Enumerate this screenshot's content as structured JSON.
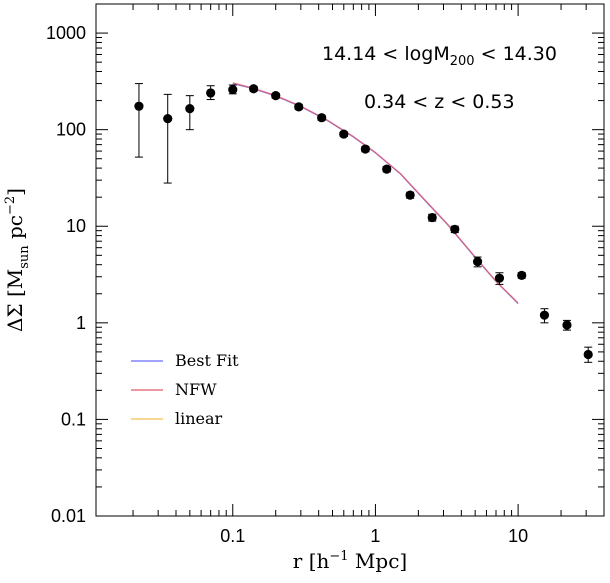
{
  "chart_data": {
    "type": "scatter",
    "xscale": "log",
    "yscale": "log",
    "xlim": [
      0.011,
      40
    ],
    "ylim": [
      0.01,
      2000
    ],
    "x_ticks": [
      {
        "value": 0.1,
        "label": "0.1"
      },
      {
        "value": 1,
        "label": "1"
      },
      {
        "value": 10,
        "label": "10"
      }
    ],
    "y_ticks": [
      {
        "value": 0.01,
        "label": "0.01"
      },
      {
        "value": 0.1,
        "label": "0.1"
      },
      {
        "value": 1,
        "label": "1"
      },
      {
        "value": 10,
        "label": "10"
      },
      {
        "value": 100,
        "label": "100"
      },
      {
        "value": 1000,
        "label": "1000"
      }
    ],
    "xlabel": {
      "prefix": "r  [h",
      "sup": "−1",
      "suffix": " Mpc]"
    },
    "ylabel": {
      "prefix": "ΔΣ  [M",
      "sub": "sun",
      "mid": "  pc",
      "sup": "−2",
      "suffix": "]"
    },
    "annotations": {
      "mass_range": {
        "left": "14.14  <  logM",
        "sub": "200",
        "right": "  <  14.30"
      },
      "z_range": "0.34  <  z  <  0.53"
    },
    "legend": [
      {
        "label": "Best Fit",
        "color": "#6b6bff"
      },
      {
        "label": "NFW",
        "color": "#e05a6a"
      },
      {
        "label": "linear",
        "color": "#f2c14e"
      }
    ],
    "legend_position": "lower-left",
    "data_points": [
      {
        "x": 0.022,
        "y": 175,
        "ylo": 52,
        "yhi": 300
      },
      {
        "x": 0.035,
        "y": 130,
        "ylo": 28,
        "yhi": 232
      },
      {
        "x": 0.05,
        "y": 165,
        "ylo": 100,
        "yhi": 225
      },
      {
        "x": 0.07,
        "y": 240,
        "ylo": 205,
        "yhi": 285
      },
      {
        "x": 0.1,
        "y": 260,
        "ylo": 235,
        "yhi": 290
      },
      {
        "x": 0.14,
        "y": 265,
        "ylo": 250,
        "yhi": 280
      },
      {
        "x": 0.2,
        "y": 225,
        "ylo": 212,
        "yhi": 238
      },
      {
        "x": 0.29,
        "y": 172,
        "ylo": 162,
        "yhi": 182
      },
      {
        "x": 0.42,
        "y": 133,
        "ylo": 125,
        "yhi": 141
      },
      {
        "x": 0.6,
        "y": 90,
        "ylo": 85,
        "yhi": 95
      },
      {
        "x": 0.85,
        "y": 63,
        "ylo": 59,
        "yhi": 67
      },
      {
        "x": 1.2,
        "y": 39,
        "ylo": 36.5,
        "yhi": 41.5
      },
      {
        "x": 1.75,
        "y": 21,
        "ylo": 19.5,
        "yhi": 22.5
      },
      {
        "x": 2.5,
        "y": 12.3,
        "ylo": 11.3,
        "yhi": 13.3
      },
      {
        "x": 3.6,
        "y": 9.3,
        "ylo": 8.6,
        "yhi": 10
      },
      {
        "x": 5.2,
        "y": 4.3,
        "ylo": 3.8,
        "yhi": 4.8
      },
      {
        "x": 7.4,
        "y": 2.9,
        "ylo": 2.5,
        "yhi": 3.3
      },
      {
        "x": 10.6,
        "y": 3.1,
        "ylo": 2.9,
        "yhi": 3.3
      },
      {
        "x": 15.3,
        "y": 1.2,
        "ylo": 1.0,
        "yhi": 1.4
      },
      {
        "x": 22,
        "y": 0.95,
        "ylo": 0.84,
        "yhi": 1.06
      },
      {
        "x": 31,
        "y": 0.47,
        "ylo": 0.39,
        "yhi": 0.56
      }
    ],
    "series": [
      {
        "name": "NFW",
        "color": "#e05a6a",
        "points": [
          {
            "x": 0.1,
            "y": 305
          },
          {
            "x": 0.14,
            "y": 268
          },
          {
            "x": 0.2,
            "y": 225
          },
          {
            "x": 0.3,
            "y": 175
          },
          {
            "x": 0.45,
            "y": 128
          },
          {
            "x": 0.7,
            "y": 85
          },
          {
            "x": 1.0,
            "y": 58
          },
          {
            "x": 1.5,
            "y": 35
          },
          {
            "x": 2.2,
            "y": 19
          },
          {
            "x": 3.2,
            "y": 10.5
          },
          {
            "x": 5.0,
            "y": 4.8
          },
          {
            "x": 7.0,
            "y": 2.7
          },
          {
            "x": 10.0,
            "y": 1.6
          }
        ]
      },
      {
        "name": "Best Fit",
        "color": "#6b6bff",
        "points": [
          {
            "x": 0.1,
            "y": 300
          },
          {
            "x": 0.14,
            "y": 265
          },
          {
            "x": 0.2,
            "y": 223
          },
          {
            "x": 0.3,
            "y": 173
          },
          {
            "x": 0.45,
            "y": 127
          },
          {
            "x": 0.7,
            "y": 84
          },
          {
            "x": 1.0,
            "y": 57.5
          },
          {
            "x": 1.5,
            "y": 34.7
          },
          {
            "x": 2.2,
            "y": 18.8
          },
          {
            "x": 3.2,
            "y": 10.4
          },
          {
            "x": 5.0,
            "y": 4.75
          },
          {
            "x": 7.0,
            "y": 2.68
          },
          {
            "x": 10.0,
            "y": 1.58
          }
        ]
      }
    ]
  }
}
